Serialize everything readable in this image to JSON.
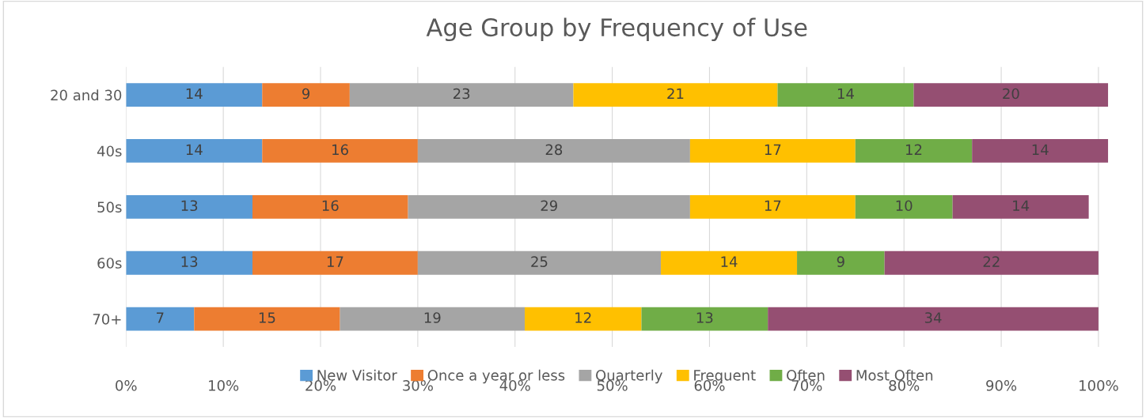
{
  "chart_data": {
    "type": "bar",
    "orientation": "horizontal",
    "stacked": true,
    "title": "Age Group by Frequency of Use",
    "categories": [
      "20 and 30",
      "40s",
      "50s",
      "60s",
      "70+"
    ],
    "series": [
      {
        "name": "New Visitor",
        "color": "#5b9bd5",
        "values": [
          14,
          14,
          13,
          13,
          7
        ]
      },
      {
        "name": "Once a year or less",
        "color": "#ed7d31",
        "values": [
          9,
          16,
          16,
          17,
          15
        ]
      },
      {
        "name": "Quarterly",
        "color": "#a5a5a5",
        "values": [
          23,
          28,
          29,
          25,
          19
        ]
      },
      {
        "name": "Frequent",
        "color": "#ffc000",
        "values": [
          21,
          17,
          17,
          14,
          12
        ]
      },
      {
        "name": "Often",
        "color": "#70ad47",
        "values": [
          14,
          12,
          10,
          9,
          13
        ]
      },
      {
        "name": "Most Often",
        "color": "#954f72",
        "values": [
          20,
          14,
          14,
          22,
          34
        ]
      }
    ],
    "xlim": [
      0,
      101
    ],
    "xticks": [
      {
        "value": 0,
        "label": "0%"
      },
      {
        "value": 10,
        "label": "10%"
      },
      {
        "value": 20,
        "label": "20%"
      },
      {
        "value": 30,
        "label": "30%"
      },
      {
        "value": 40,
        "label": "40%"
      },
      {
        "value": 50,
        "label": "50%"
      },
      {
        "value": 60,
        "label": "60%"
      },
      {
        "value": 70,
        "label": "70%"
      },
      {
        "value": 80,
        "label": "80%"
      },
      {
        "value": 90,
        "label": "90%"
      },
      {
        "value": 100,
        "label": "100%"
      }
    ],
    "data_labels": true,
    "grid": "x",
    "legend": "bottom"
  }
}
